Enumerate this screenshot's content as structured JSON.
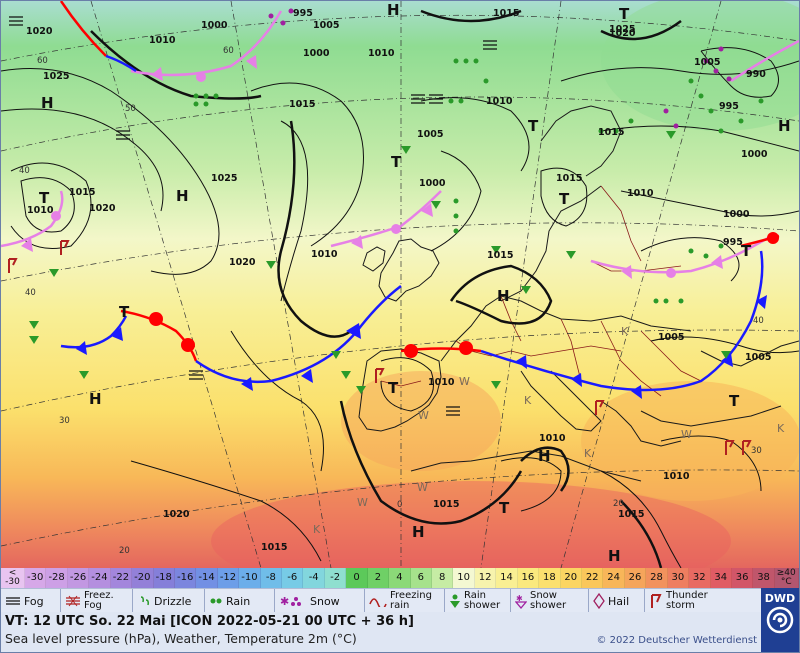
{
  "map": {
    "isobar_labels": [
      {
        "text": "1020"
      },
      {
        "text": "1010"
      },
      {
        "text": "1000"
      },
      {
        "text": "1005"
      },
      {
        "text": "995"
      },
      {
        "text": "1015"
      },
      {
        "text": "1010"
      },
      {
        "text": "1020"
      },
      {
        "text": "1025"
      },
      {
        "text": "1000"
      },
      {
        "text": "1025"
      },
      {
        "text": "1015"
      },
      {
        "text": "1005"
      },
      {
        "text": "1010"
      },
      {
        "text": "1025"
      },
      {
        "text": "1015"
      },
      {
        "text": "1020"
      },
      {
        "text": "1010"
      },
      {
        "text": "1000"
      },
      {
        "text": "1015"
      },
      {
        "text": "1010"
      },
      {
        "text": "1005"
      },
      {
        "text": "990"
      },
      {
        "text": "995"
      },
      {
        "text": "1000"
      },
      {
        "text": "1015"
      },
      {
        "text": "1010"
      },
      {
        "text": "1000"
      },
      {
        "text": "995"
      },
      {
        "text": "1005"
      },
      {
        "text": "1005"
      },
      {
        "text": "1010"
      },
      {
        "text": "1010"
      },
      {
        "text": "1020"
      },
      {
        "text": "1015"
      },
      {
        "text": "1015"
      },
      {
        "text": "1015"
      },
      {
        "text": "1020"
      },
      {
        "text": "1010"
      },
      {
        "text": "1015"
      }
    ],
    "grid_labels": [
      {
        "text": "60"
      },
      {
        "text": "60"
      },
      {
        "text": "50"
      },
      {
        "text": "40"
      },
      {
        "text": "40"
      },
      {
        "text": "30"
      },
      {
        "text": "20"
      },
      {
        "text": "0"
      },
      {
        "text": "20"
      },
      {
        "text": "30"
      },
      {
        "text": "40"
      }
    ],
    "pressure_centers": [
      {
        "text": "H"
      },
      {
        "text": "H"
      },
      {
        "text": "H"
      },
      {
        "text": "H"
      },
      {
        "text": "H"
      },
      {
        "text": "H"
      },
      {
        "text": "H"
      },
      {
        "text": "H"
      },
      {
        "text": "H"
      },
      {
        "text": "T"
      },
      {
        "text": "T"
      },
      {
        "text": "T"
      },
      {
        "text": "T"
      },
      {
        "text": "T"
      },
      {
        "text": "T"
      },
      {
        "text": "T"
      },
      {
        "text": "T"
      },
      {
        "text": "T"
      },
      {
        "text": "T"
      }
    ],
    "small_marks": [
      {
        "text": "W"
      },
      {
        "text": "W"
      },
      {
        "text": "W"
      },
      {
        "text": "W"
      },
      {
        "text": "W"
      },
      {
        "text": "K"
      },
      {
        "text": "K"
      },
      {
        "text": "K"
      },
      {
        "text": "K"
      },
      {
        "text": "K"
      }
    ]
  },
  "colorbar": {
    "first_label": [
      "<",
      "-30"
    ],
    "last_label": [
      "≥40",
      "°C"
    ],
    "steps": [
      {
        "label": "-30",
        "color": "#d6a8e8"
      },
      {
        "label": "-28",
        "color": "#cda0e6"
      },
      {
        "label": "-26",
        "color": "#c298e2"
      },
      {
        "label": "-24",
        "color": "#b48fdf"
      },
      {
        "label": "-22",
        "color": "#a386dc"
      },
      {
        "label": "-20",
        "color": "#9380d8"
      },
      {
        "label": "-18",
        "color": "#857fd9"
      },
      {
        "label": "-16",
        "color": "#7b86de"
      },
      {
        "label": "-14",
        "color": "#7290e4"
      },
      {
        "label": "-12",
        "color": "#6d9ee8"
      },
      {
        "label": "-10",
        "color": "#6caeea"
      },
      {
        "label": "-8",
        "color": "#70bde9"
      },
      {
        "label": "-6",
        "color": "#77cbe6"
      },
      {
        "label": "-4",
        "color": "#82d6dd"
      },
      {
        "label": "-2",
        "color": "#8fdfcf"
      },
      {
        "label": "0",
        "color": "#5cc95a"
      },
      {
        "label": "2",
        "color": "#6fd066"
      },
      {
        "label": "4",
        "color": "#8bd978"
      },
      {
        "label": "6",
        "color": "#a6e28c"
      },
      {
        "label": "8",
        "color": "#c6eca4"
      },
      {
        "label": "10",
        "color": "#f4f8d2"
      },
      {
        "label": "12",
        "color": "#f7f3ad"
      },
      {
        "label": "14",
        "color": "#f9ef93"
      },
      {
        "label": "16",
        "color": "#fae97e"
      },
      {
        "label": "18",
        "color": "#fbe06e"
      },
      {
        "label": "20",
        "color": "#fbd562"
      },
      {
        "label": "22",
        "color": "#fac75b"
      },
      {
        "label": "24",
        "color": "#f8b659"
      },
      {
        "label": "26",
        "color": "#f5a55b"
      },
      {
        "label": "28",
        "color": "#f2925d"
      },
      {
        "label": "30",
        "color": "#ee7e60"
      },
      {
        "label": "32",
        "color": "#e86a62"
      },
      {
        "label": "34",
        "color": "#e05c64"
      },
      {
        "label": "36",
        "color": "#d25668"
      },
      {
        "label": "38",
        "color": "#c0566b"
      }
    ],
    "first_color": "#e8c4f0",
    "last_color": "#b2566f"
  },
  "legend": {
    "items": [
      {
        "label": "Fog",
        "icon": "fog-icon"
      },
      {
        "label": "Freez. Fog",
        "icon": "freezing-fog-icon"
      },
      {
        "label": "Drizzle",
        "icon": "drizzle-icon"
      },
      {
        "label": "Rain",
        "icon": "rain-icon"
      },
      {
        "label": "Snow",
        "icon": "snow-icon"
      },
      {
        "label": "Freezing rain",
        "icon": "freezing-rain-icon"
      },
      {
        "label": "Rain shower",
        "icon": "rain-shower-icon"
      },
      {
        "label": "Snow shower",
        "icon": "snow-shower-icon"
      },
      {
        "label": "Hail",
        "icon": "hail-icon"
      },
      {
        "label": "Thunder storm",
        "icon": "thunderstorm-icon"
      }
    ]
  },
  "info": {
    "valid_time": "VT: 12 UTC So.  22 Mai [ICON 2022-05-21  00 UTC + 36 h]",
    "description": "Sea level pressure (hPa), Weather, Temperature 2m (°C)",
    "copyright": "© 2022 Deutscher Wetterdienst",
    "logo_text": "DWD"
  },
  "colors": {
    "warm_front": "#ff0000",
    "cold_front": "#1a1aff",
    "occluded_front": "#e680e6",
    "isobar": "#111111"
  }
}
